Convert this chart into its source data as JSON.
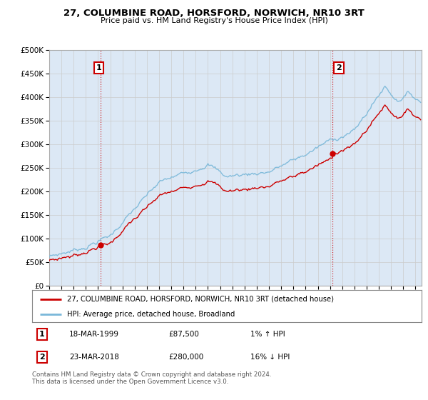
{
  "title": "27, COLUMBINE ROAD, HORSFORD, NORWICH, NR10 3RT",
  "subtitle": "Price paid vs. HM Land Registry's House Price Index (HPI)",
  "legend_label_red": "27, COLUMBINE ROAD, HORSFORD, NORWICH, NR10 3RT (detached house)",
  "legend_label_blue": "HPI: Average price, detached house, Broadland",
  "annotation1_date": "18-MAR-1999",
  "annotation1_price": "£87,500",
  "annotation1_hpi": "1% ↑ HPI",
  "annotation2_date": "23-MAR-2018",
  "annotation2_price": "£280,000",
  "annotation2_hpi": "16% ↓ HPI",
  "footer": "Contains HM Land Registry data © Crown copyright and database right 2024.\nThis data is licensed under the Open Government Licence v3.0.",
  "sale1_year": 1999.21,
  "sale1_price": 87500,
  "sale2_year": 2018.22,
  "sale2_price": 280000,
  "hpi_color": "#7ab8d9",
  "price_color": "#cc0000",
  "annotation_box_color": "#cc0000",
  "grid_color": "#cccccc",
  "chart_bg_color": "#dce8f5",
  "bg_color": "#ffffff",
  "ylim_min": 0,
  "ylim_max": 500000,
  "ytick_step": 50000,
  "xmin": 1995,
  "xmax": 2025.5
}
